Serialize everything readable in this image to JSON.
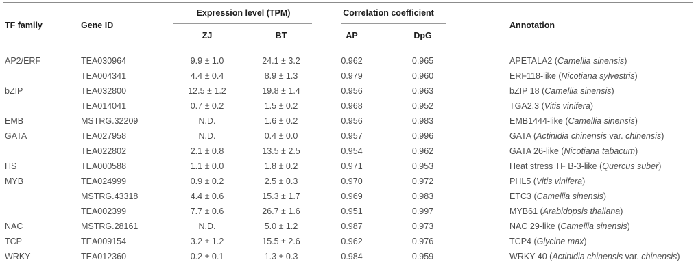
{
  "table": {
    "headers": {
      "tf_family": "TF family",
      "gene_id": "Gene ID",
      "expression_group": "Expression level (TPM)",
      "zj": "ZJ",
      "bt": "BT",
      "correlation_group": "Correlation coefficient",
      "ap": "AP",
      "dpg": "DpG",
      "annotation": "Annotation"
    },
    "not_detected_label": "N.D.",
    "rows": [
      {
        "tf_family": "AP2/ERF",
        "gene_id": "TEA030964",
        "zj": "9.9 ± 1.0",
        "bt": "24.1 ± 3.2",
        "ap": "0.962",
        "dpg": "0.965",
        "annotation": [
          {
            "t": "APETALA2 (",
            "i": false
          },
          {
            "t": "Camellia sinensis",
            "i": true
          },
          {
            "t": ")",
            "i": false
          }
        ]
      },
      {
        "tf_family": "",
        "gene_id": "TEA004341",
        "zj": "4.4 ± 0.4",
        "bt": "8.9 ± 1.3",
        "ap": "0.979",
        "dpg": "0.960",
        "annotation": [
          {
            "t": "ERF118-like (",
            "i": false
          },
          {
            "t": "Nicotiana sylvestris",
            "i": true
          },
          {
            "t": ")",
            "i": false
          }
        ]
      },
      {
        "tf_family": "bZIP",
        "gene_id": "TEA032800",
        "zj": "12.5 ± 1.2",
        "bt": "19.8 ± 1.4",
        "ap": "0.956",
        "dpg": "0.963",
        "annotation": [
          {
            "t": "bZIP 18 (",
            "i": false
          },
          {
            "t": "Camellia sinensis",
            "i": true
          },
          {
            "t": ")",
            "i": false
          }
        ]
      },
      {
        "tf_family": "",
        "gene_id": "TEA014041",
        "zj": "0.7 ± 0.2",
        "bt": "1.5 ± 0.2",
        "ap": "0.968",
        "dpg": "0.952",
        "annotation": [
          {
            "t": "TGA2.3 (",
            "i": false
          },
          {
            "t": "Vitis vinifera",
            "i": true
          },
          {
            "t": ")",
            "i": false
          }
        ]
      },
      {
        "tf_family": "EMB",
        "gene_id": "MSTRG.32209",
        "zj": "N.D.",
        "bt": "1.6 ± 0.2",
        "ap": "0.956",
        "dpg": "0.983",
        "annotation": [
          {
            "t": "EMB1444-like (",
            "i": false
          },
          {
            "t": "Camellia sinensis",
            "i": true
          },
          {
            "t": ")",
            "i": false
          }
        ]
      },
      {
        "tf_family": "GATA",
        "gene_id": "TEA027958",
        "zj": "N.D.",
        "bt": "0.4 ± 0.0",
        "ap": "0.957",
        "dpg": "0.996",
        "annotation": [
          {
            "t": "GATA (",
            "i": false
          },
          {
            "t": "Actinidia chinensis",
            "i": true
          },
          {
            "t": " var. ",
            "i": false
          },
          {
            "t": "chinensis",
            "i": true
          },
          {
            "t": ")",
            "i": false
          }
        ]
      },
      {
        "tf_family": "",
        "gene_id": "TEA022802",
        "zj": "2.1 ± 0.8",
        "bt": "13.5 ± 2.5",
        "ap": "0.954",
        "dpg": "0.962",
        "annotation": [
          {
            "t": "GATA 26-like (",
            "i": false
          },
          {
            "t": "Nicotiana tabacum",
            "i": true
          },
          {
            "t": ")",
            "i": false
          }
        ]
      },
      {
        "tf_family": "HS",
        "gene_id": "TEA000588",
        "zj": "1.1 ± 0.0",
        "bt": "1.8 ± 0.2",
        "ap": "0.971",
        "dpg": "0.953",
        "annotation": [
          {
            "t": "Heat stress TF B-3-like (",
            "i": false
          },
          {
            "t": "Quercus suber",
            "i": true
          },
          {
            "t": ")",
            "i": false
          }
        ]
      },
      {
        "tf_family": "MYB",
        "gene_id": "TEA024999",
        "zj": "0.9 ± 0.2",
        "bt": "2.5 ± 0.3",
        "ap": "0.970",
        "dpg": "0.972",
        "annotation": [
          {
            "t": "PHL5 (",
            "i": false
          },
          {
            "t": "Vitis vinifera",
            "i": true
          },
          {
            "t": ")",
            "i": false
          }
        ]
      },
      {
        "tf_family": "",
        "gene_id": "MSTRG.43318",
        "zj": "4.4 ± 0.6",
        "bt": "15.3 ± 1.7",
        "ap": "0.969",
        "dpg": "0.983",
        "annotation": [
          {
            "t": "ETC3 (",
            "i": false
          },
          {
            "t": "Camellia sinensis",
            "i": true
          },
          {
            "t": ")",
            "i": false
          }
        ]
      },
      {
        "tf_family": "",
        "gene_id": "TEA002399",
        "zj": "7.7 ± 0.6",
        "bt": "26.7 ± 1.6",
        "ap": "0.951",
        "dpg": "0.997",
        "annotation": [
          {
            "t": "MYB61 (",
            "i": false
          },
          {
            "t": "Arabidopsis thaliana",
            "i": true
          },
          {
            "t": ")",
            "i": false
          }
        ]
      },
      {
        "tf_family": "NAC",
        "gene_id": "MSTRG.28161",
        "zj": "N.D.",
        "bt": "5.0 ± 1.2",
        "ap": "0.987",
        "dpg": "0.973",
        "annotation": [
          {
            "t": "NAC 29-like (",
            "i": false
          },
          {
            "t": "Camellia sinensis",
            "i": true
          },
          {
            "t": ")",
            "i": false
          }
        ]
      },
      {
        "tf_family": "TCP",
        "gene_id": "TEA009154",
        "zj": "3.2 ± 1.2",
        "bt": "15.5 ± 2.6",
        "ap": "0.962",
        "dpg": "0.976",
        "annotation": [
          {
            "t": "TCP4 (",
            "i": false
          },
          {
            "t": "Glycine max",
            "i": true
          },
          {
            "t": ")",
            "i": false
          }
        ]
      },
      {
        "tf_family": "WRKY",
        "gene_id": "TEA012360",
        "zj": "0.2 ± 0.1",
        "bt": "1.3 ± 0.3",
        "ap": "0.984",
        "dpg": "0.959",
        "annotation": [
          {
            "t": "WRKY 40 (",
            "i": false
          },
          {
            "t": "Actinidia chinensis",
            "i": true
          },
          {
            "t": " var. ",
            "i": false
          },
          {
            "t": "chinensis",
            "i": true
          },
          {
            "t": ")",
            "i": false
          }
        ]
      }
    ]
  },
  "colors": {
    "header_text": "#1c1c1c",
    "body_text": "#4d4d4d",
    "rule": "#8c8c8c",
    "sub_rule": "#9a9a9a",
    "background": "#ffffff"
  }
}
